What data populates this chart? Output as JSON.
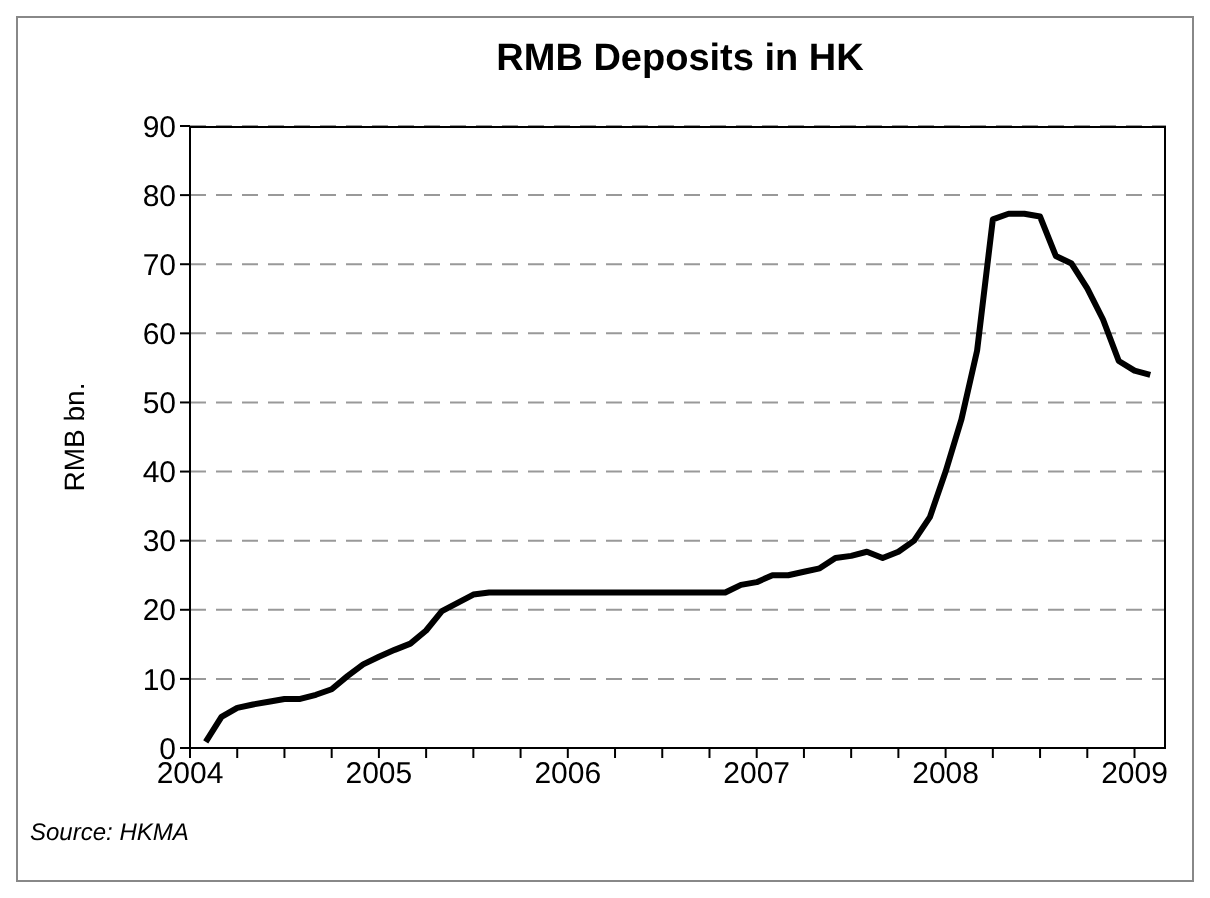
{
  "chart_data": {
    "type": "line",
    "title": "RMB Deposits in HK",
    "ylabel": "RMB bn.",
    "annotations": [
      "Source: HKMA"
    ],
    "x": [
      "2004-02",
      "2004-03",
      "2004-04",
      "2004-05",
      "2004-06",
      "2004-07",
      "2004-08",
      "2004-09",
      "2004-10",
      "2004-11",
      "2004-12",
      "2005-01",
      "2005-02",
      "2005-03",
      "2005-04",
      "2005-05",
      "2005-06",
      "2005-07",
      "2005-08",
      "2005-09",
      "2005-10",
      "2005-11",
      "2005-12",
      "2006-01",
      "2006-02",
      "2006-03",
      "2006-04",
      "2006-05",
      "2006-06",
      "2006-07",
      "2006-08",
      "2006-09",
      "2006-10",
      "2006-11",
      "2006-12",
      "2007-01",
      "2007-02",
      "2007-03",
      "2007-04",
      "2007-05",
      "2007-06",
      "2007-07",
      "2007-08",
      "2007-09",
      "2007-10",
      "2007-11",
      "2007-12",
      "2008-01",
      "2008-02",
      "2008-03",
      "2008-04",
      "2008-05",
      "2008-06",
      "2008-07",
      "2008-08",
      "2008-09",
      "2008-10",
      "2008-11",
      "2008-12",
      "2009-01",
      "2009-02"
    ],
    "series": [
      {
        "color": "#000000",
        "values": [
          0.9,
          4.5,
          5.8,
          6.3,
          6.7,
          7.1,
          7.1,
          7.7,
          8.5,
          10.4,
          12.1,
          13.2,
          14.2,
          15.1,
          17.0,
          19.8,
          21.0,
          22.2,
          22.5,
          22.5,
          22.5,
          22.5,
          22.5,
          22.5,
          22.5,
          22.5,
          22.5,
          22.5,
          22.5,
          22.5,
          22.5,
          22.5,
          22.5,
          22.5,
          23.6,
          24.0,
          25.0,
          25.0,
          25.5,
          26.0,
          27.5,
          27.8,
          28.4,
          27.5,
          28.4,
          30.0,
          33.4,
          40.0,
          47.5,
          57.5,
          76.5,
          77.3,
          77.3,
          76.9,
          71.2,
          70.1,
          66.5,
          62.0,
          56.0,
          54.6,
          54.0
        ]
      }
    ],
    "xlim": [
      "2004-01",
      "2009-03"
    ],
    "xticks": [
      {
        "value": "2004-01",
        "label": "2004"
      },
      {
        "value": "2004-04",
        "label": null
      },
      {
        "value": "2004-07",
        "label": null
      },
      {
        "value": "2004-10",
        "label": null
      },
      {
        "value": "2005-01",
        "label": "2005"
      },
      {
        "value": "2005-04",
        "label": null
      },
      {
        "value": "2005-07",
        "label": null
      },
      {
        "value": "2005-10",
        "label": null
      },
      {
        "value": "2006-01",
        "label": "2006"
      },
      {
        "value": "2006-04",
        "label": null
      },
      {
        "value": "2006-07",
        "label": null
      },
      {
        "value": "2006-10",
        "label": null
      },
      {
        "value": "2007-01",
        "label": "2007"
      },
      {
        "value": "2007-04",
        "label": null
      },
      {
        "value": "2007-07",
        "label": null
      },
      {
        "value": "2007-10",
        "label": null
      },
      {
        "value": "2008-01",
        "label": "2008"
      },
      {
        "value": "2008-04",
        "label": null
      },
      {
        "value": "2008-07",
        "label": null
      },
      {
        "value": "2008-10",
        "label": null
      },
      {
        "value": "2009-01",
        "label": "2009"
      }
    ],
    "ylim": [
      0,
      90
    ],
    "yticks": [
      0,
      10,
      20,
      30,
      40,
      50,
      60,
      70,
      80,
      90
    ],
    "grid": "y",
    "line_style": "solid",
    "legend": false
  }
}
